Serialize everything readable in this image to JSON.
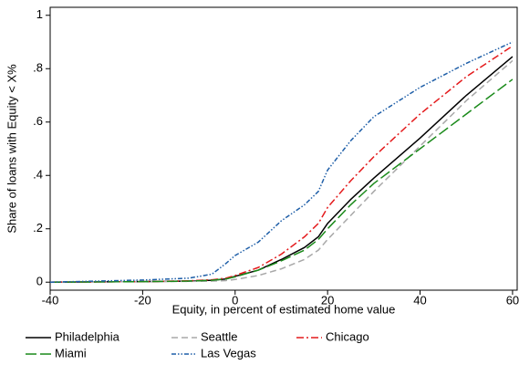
{
  "chart_data": {
    "type": "line",
    "x_label": "Equity, in percent of estimated home value",
    "y_label": "Share of loans with Equity < X%",
    "x": [
      -40,
      -30,
      -20,
      -10,
      -5,
      -2,
      0,
      5,
      10,
      15,
      18,
      20,
      25,
      30,
      40,
      50,
      60
    ],
    "series": [
      {
        "name": "Philadelphia",
        "color": "#000000",
        "style": "solid",
        "values": [
          0,
          0.001,
          0.002,
          0.004,
          0.007,
          0.012,
          0.022,
          0.045,
          0.085,
          0.13,
          0.17,
          0.22,
          0.31,
          0.39,
          0.54,
          0.7,
          0.845
        ]
      },
      {
        "name": "Seattle",
        "color": "#a8a8a8",
        "style": "dash",
        "values": [
          0,
          0.001,
          0.002,
          0.003,
          0.004,
          0.006,
          0.01,
          0.025,
          0.05,
          0.085,
          0.12,
          0.16,
          0.25,
          0.34,
          0.51,
          0.68,
          0.83
        ]
      },
      {
        "name": "Chicago",
        "color": "#e41a1c",
        "style": "dashdot",
        "values": [
          0,
          0.001,
          0.002,
          0.005,
          0.009,
          0.015,
          0.025,
          0.055,
          0.105,
          0.17,
          0.22,
          0.28,
          0.38,
          0.47,
          0.63,
          0.77,
          0.885
        ]
      },
      {
        "name": "Miami",
        "color": "#1a8a1a",
        "style": "longdash",
        "values": [
          0,
          0.001,
          0.002,
          0.004,
          0.007,
          0.012,
          0.02,
          0.045,
          0.08,
          0.12,
          0.16,
          0.2,
          0.29,
          0.37,
          0.5,
          0.63,
          0.76
        ]
      },
      {
        "name": "Las Vegas",
        "color": "#1f5fa8",
        "style": "dashdotdot",
        "values": [
          0,
          0.004,
          0.008,
          0.015,
          0.03,
          0.07,
          0.1,
          0.15,
          0.23,
          0.29,
          0.34,
          0.42,
          0.53,
          0.62,
          0.73,
          0.82,
          0.9
        ]
      }
    ],
    "xlim": [
      -40,
      61
    ],
    "ylim": [
      -0.03,
      1.03
    ],
    "xticks": [
      -40,
      -20,
      0,
      20,
      40,
      60
    ],
    "yticks": [
      0,
      {
        "value": 0.2,
        "label": ".2"
      },
      {
        "value": 0.4,
        "label": ".4"
      },
      {
        "value": 0.6,
        "label": ".6"
      },
      {
        "value": 0.8,
        "label": ".8"
      },
      1
    ],
    "grid": false,
    "legend": "bottom"
  }
}
